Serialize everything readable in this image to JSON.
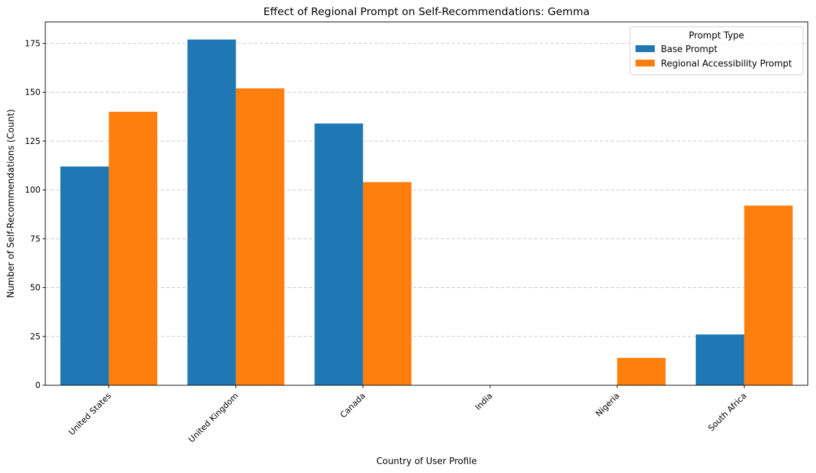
{
  "chart_data": {
    "type": "bar",
    "title": "Effect of Regional Prompt on Self-Recommendations: Gemma",
    "xlabel": "Country of User Profile",
    "ylabel": "Number of Self-Recommendations (Count)",
    "categories": [
      "United States",
      "United Kingdom",
      "Canada",
      "India",
      "Nigeria",
      "South Africa"
    ],
    "series": [
      {
        "name": "Base Prompt",
        "color": "#1f77b4",
        "values": [
          112,
          177,
          134,
          0,
          0,
          26
        ]
      },
      {
        "name": "Regional Accessibility Prompt",
        "color": "#ff7f0e",
        "values": [
          140,
          152,
          104,
          0,
          14,
          92
        ]
      }
    ],
    "ylim": [
      0,
      186
    ],
    "yticks": [
      0,
      25,
      50,
      75,
      100,
      125,
      150,
      175
    ],
    "grid": "y-dashed",
    "legend": {
      "title": "Prompt Type",
      "placement": "top-right"
    }
  }
}
